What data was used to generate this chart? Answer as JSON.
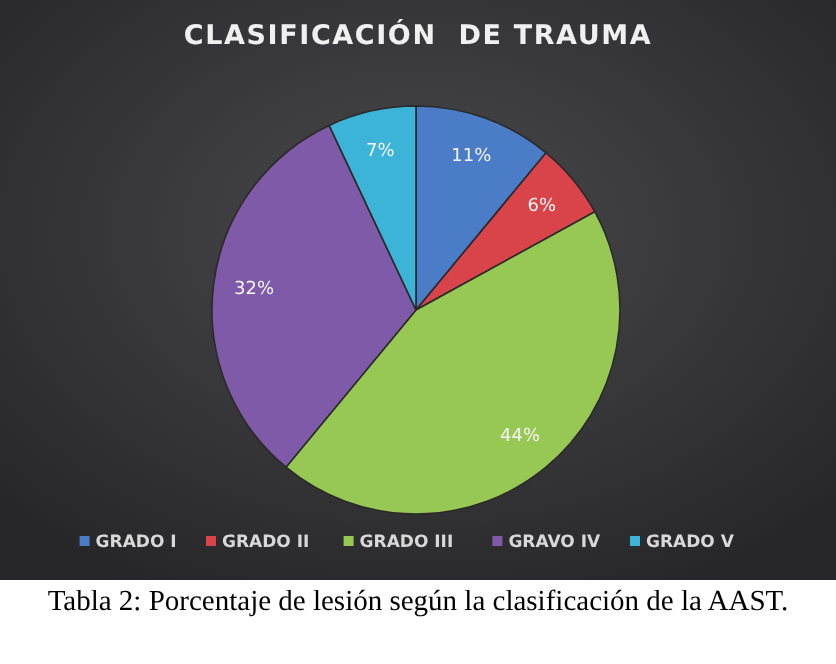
{
  "chart_data": {
    "type": "pie",
    "title": "CLASIFICACIÓN  DE TRAUMA",
    "categories": [
      "GRADO I",
      "GRADO II",
      "GRADO III",
      "GRAVO IV",
      "GRADO V"
    ],
    "values": [
      11,
      6,
      44,
      32,
      7
    ],
    "colors": [
      "#4a7cc8",
      "#d9434a",
      "#98c854",
      "#7e5aa8",
      "#3cb4d8"
    ],
    "value_labels": [
      "11%",
      "6%",
      "44%",
      "32%",
      "7%"
    ],
    "legend": "bottom",
    "annotations": [
      "Tabla 2: Porcentaje de lesión según la clasificación de la AAST."
    ]
  }
}
